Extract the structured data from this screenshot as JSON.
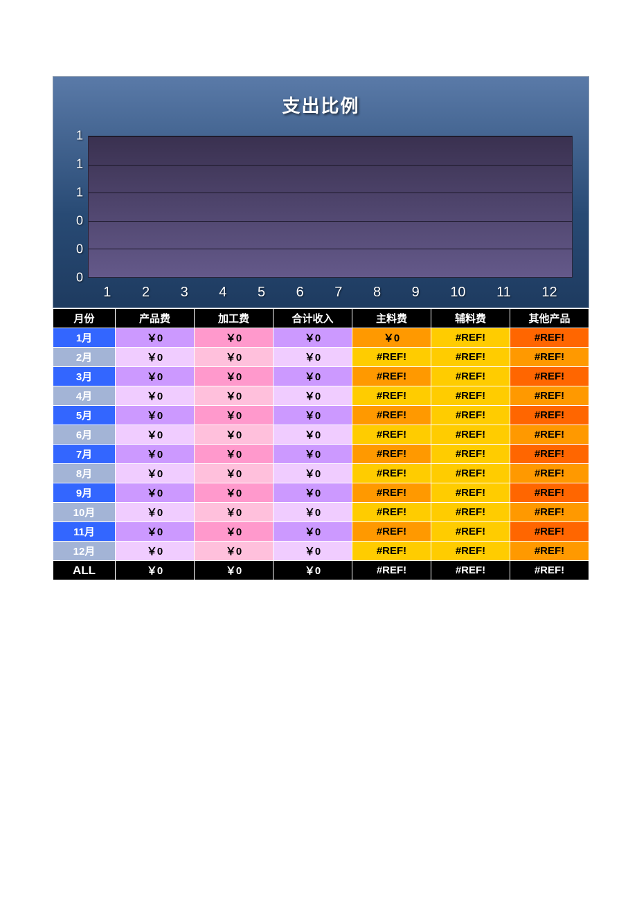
{
  "chart": {
    "title": "支出比例",
    "title_fontsize": 26,
    "title_color": "#ffffff",
    "panel_gradient": [
      "#5a7aa8",
      "#284a74",
      "#1e3b60"
    ],
    "plot_gradient": [
      "#3a3150",
      "#64598a"
    ],
    "gridline_color": "#1a1626",
    "ylim": [
      0,
      1
    ],
    "ytick_count": 6,
    "ytick_labels": [
      "1",
      "1",
      "1",
      "0",
      "0",
      "0"
    ],
    "ytick_fontsize": 18,
    "xticks": [
      "1",
      "2",
      "3",
      "4",
      "5",
      "6",
      "7",
      "8",
      "9",
      "10",
      "11",
      "12"
    ],
    "xtick_fontsize": 20,
    "type": "bar",
    "series": []
  },
  "table": {
    "columns": [
      "月份",
      "产品费",
      "加工费",
      "合计收入",
      "主料费",
      "辅料费",
      "其他产品"
    ],
    "col_align": "center",
    "header_bg": "#000000",
    "header_color": "#ffffff",
    "month_colors_odd": "#3366ff",
    "month_colors_even": "#a3b4d6",
    "cell_colors": {
      "c1_odd": "#cc99ff",
      "c1_even": "#f0ccff",
      "c2_odd": "#ff99cc",
      "c2_even": "#ffc0dc",
      "c3_odd": "#cc99ff",
      "c3_even": "#f0ccff",
      "c4_odd": "#ff9900",
      "c4_even": "#ffcc00",
      "c5_odd": "#ffcc00",
      "c5_even": "#ffcc00",
      "c6_odd": "#ff6600",
      "c6_even": "#ff9900"
    },
    "rows": [
      {
        "month": "1月",
        "v": [
          "￥0",
          "￥0",
          "￥0",
          "￥0",
          "#REF!",
          "#REF!"
        ]
      },
      {
        "month": "2月",
        "v": [
          "￥0",
          "￥0",
          "￥0",
          "#REF!",
          "#REF!",
          "#REF!"
        ]
      },
      {
        "month": "3月",
        "v": [
          "￥0",
          "￥0",
          "￥0",
          "#REF!",
          "#REF!",
          "#REF!"
        ]
      },
      {
        "month": "4月",
        "v": [
          "￥0",
          "￥0",
          "￥0",
          "#REF!",
          "#REF!",
          "#REF!"
        ]
      },
      {
        "month": "5月",
        "v": [
          "￥0",
          "￥0",
          "￥0",
          "#REF!",
          "#REF!",
          "#REF!"
        ]
      },
      {
        "month": "6月",
        "v": [
          "￥0",
          "￥0",
          "￥0",
          "#REF!",
          "#REF!",
          "#REF!"
        ]
      },
      {
        "month": "7月",
        "v": [
          "￥0",
          "￥0",
          "￥0",
          "#REF!",
          "#REF!",
          "#REF!"
        ]
      },
      {
        "month": "8月",
        "v": [
          "￥0",
          "￥0",
          "￥0",
          "#REF!",
          "#REF!",
          "#REF!"
        ]
      },
      {
        "month": "9月",
        "v": [
          "￥0",
          "￥0",
          "￥0",
          "#REF!",
          "#REF!",
          "#REF!"
        ]
      },
      {
        "month": "10月",
        "v": [
          "￥0",
          "￥0",
          "￥0",
          "#REF!",
          "#REF!",
          "#REF!"
        ]
      },
      {
        "month": "11月",
        "v": [
          "￥0",
          "￥0",
          "￥0",
          "#REF!",
          "#REF!",
          "#REF!"
        ]
      },
      {
        "month": "12月",
        "v": [
          "￥0",
          "￥0",
          "￥0",
          "#REF!",
          "#REF!",
          "#REF!"
        ]
      }
    ],
    "total": {
      "label": "ALL",
      "v": [
        "￥0",
        "￥0",
        "￥0",
        "#REF!",
        "#REF!",
        "#REF!"
      ]
    }
  }
}
